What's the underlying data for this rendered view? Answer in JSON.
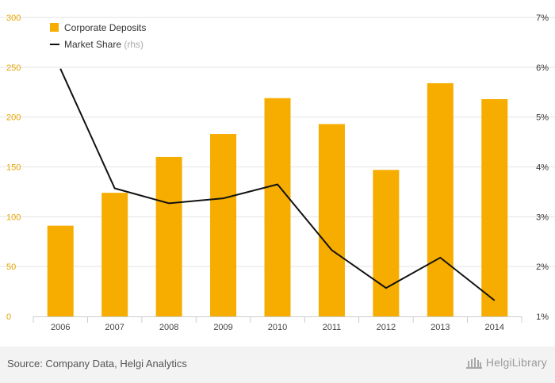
{
  "chart_data": {
    "type": "bar",
    "categories": [
      "2006",
      "2007",
      "2008",
      "2009",
      "2010",
      "2011",
      "2012",
      "2013",
      "2014"
    ],
    "series": [
      {
        "name": "Corporate Deposits",
        "type": "bar",
        "axis": "left",
        "values": [
          91,
          124,
          160,
          183,
          219,
          193,
          147,
          234,
          218
        ]
      },
      {
        "name": "Market Share",
        "name_suffix": "(rhs)",
        "type": "line",
        "axis": "right",
        "values": [
          5.97,
          3.57,
          3.27,
          3.37,
          3.65,
          2.33,
          1.57,
          2.18,
          1.32
        ]
      }
    ],
    "y_left": {
      "lim": [
        0,
        300
      ],
      "ticks": [
        0,
        50,
        100,
        150,
        200,
        250,
        300
      ],
      "tick_labels": [
        "0",
        "50",
        "100",
        "150",
        "200",
        "250",
        "300"
      ]
    },
    "y_right": {
      "lim": [
        1,
        7
      ],
      "ticks": [
        1,
        2,
        3,
        4,
        5,
        6,
        7
      ],
      "tick_labels": [
        "1%",
        "2%",
        "3%",
        "4%",
        "5%",
        "6%",
        "7%"
      ]
    },
    "grid": true,
    "legend_position": "top-left",
    "title": "",
    "xlabel": "",
    "ylabel": ""
  },
  "colors": {
    "bar": "#f6ad00",
    "line": "#111111",
    "grid": "#e3e3e3",
    "left_tick": "#e8a400",
    "right_tick": "#333333",
    "x_tick": "#444444",
    "legend_text": "#333333",
    "legend_suffix": "#aaaaaa"
  },
  "footer": {
    "source": "Source: Company Data, Helgi Analytics",
    "brand": "HelgiLibrary",
    "brand_icon": "library-building-icon"
  }
}
